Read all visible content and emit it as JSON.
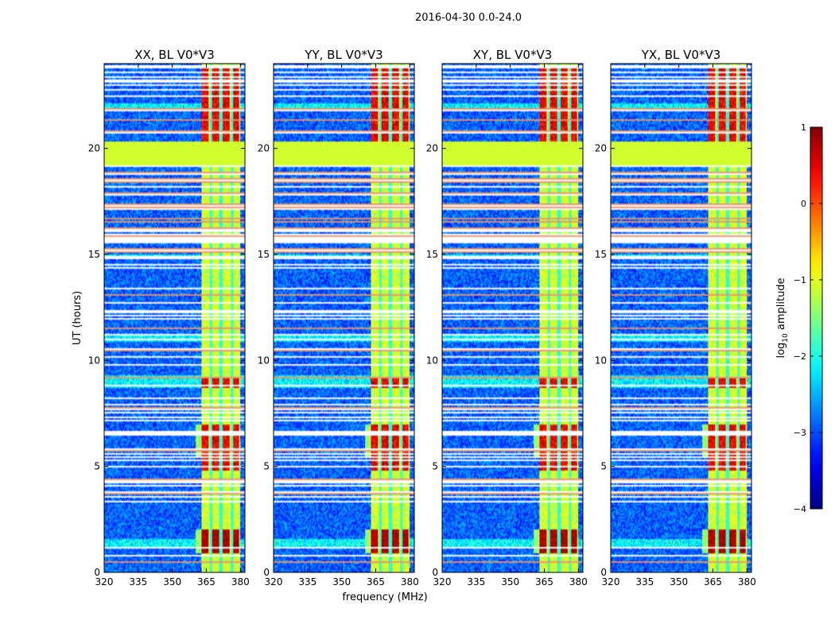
{
  "chart_data": {
    "type": "heatmap",
    "suptitle": "2016-04-30 0.0-24.0",
    "xlabel": "frequency (MHz)",
    "ylabel": "UT (hours)",
    "xlim": [
      320,
      382
    ],
    "ylim": [
      0,
      24
    ],
    "x_ticks": [
      320,
      335,
      350,
      365,
      380
    ],
    "x_tick_labels": [
      "320",
      "335",
      "350",
      "365",
      "380"
    ],
    "y_ticks": [
      0,
      5,
      10,
      15,
      20
    ],
    "y_tick_labels": [
      "0",
      "5",
      "10",
      "15",
      "20"
    ],
    "colormap": "jet",
    "colorbar": {
      "label": "log10 amplitude",
      "label_base": "log",
      "label_sub": "10",
      "label_rest": " amplitude",
      "range": [
        -4,
        1
      ],
      "ticks": [
        1,
        0,
        -1,
        -2,
        -3,
        -4
      ],
      "tick_labels": [
        "1",
        "0",
        "−1",
        "−2",
        "−3",
        "−4"
      ]
    },
    "panels": [
      {
        "title": "XX, BL V0*V3",
        "rfi_strength": 1.0
      },
      {
        "title": "YY, BL V0*V3",
        "rfi_strength": 1.08
      },
      {
        "title": "XY, BL V0*V3",
        "rfi_strength": 1.0
      },
      {
        "title": "YX, BL V0*V3",
        "rfi_strength": 1.0
      }
    ],
    "background_level": -2.9,
    "flagged_band": {
      "ut_range": [
        19.2,
        20.3
      ],
      "value": -1.1
    },
    "rfi_band": {
      "freq_range": [
        363,
        380
      ],
      "typical_level": -1.1
    },
    "rfi_columns_mhz": [
      364.5,
      369.0,
      373.5,
      378.0
    ],
    "column_gaps_mhz": [
      367.0,
      371.4,
      376.2
    ],
    "strong_rfi_ut_ranges": [
      [
        0.9,
        2.0
      ],
      [
        4.8,
        7.0
      ],
      [
        8.7,
        9.2
      ],
      [
        19.8,
        23.8
      ]
    ],
    "broadband_rfi_ut_ranges": [
      [
        1.2,
        1.6
      ],
      [
        8.7,
        9.3
      ],
      [
        10.9,
        11.2
      ],
      [
        21.8,
        22.1
      ],
      [
        14.8,
        15.0
      ]
    ]
  }
}
